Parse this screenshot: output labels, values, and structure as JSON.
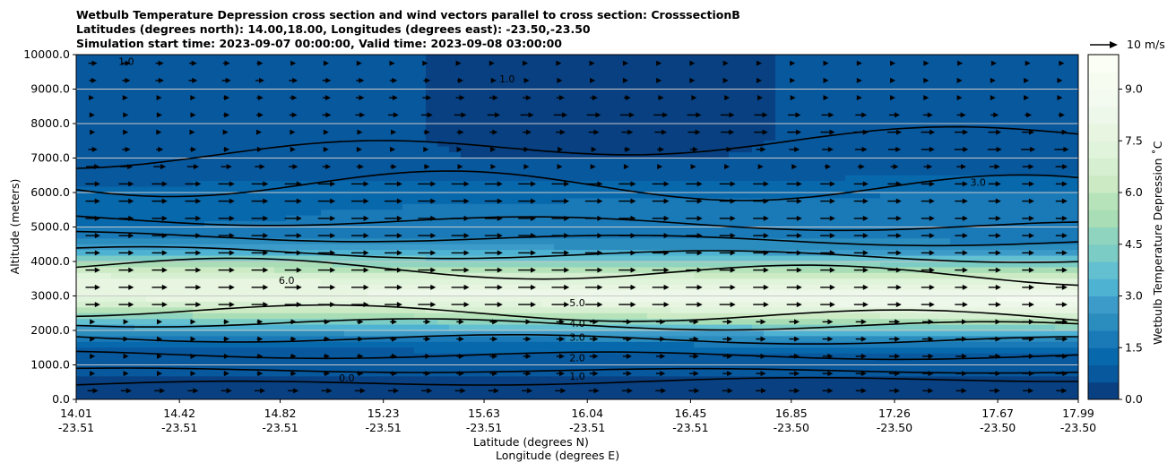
{
  "title_lines": [
    "Wetbulb Temperature Depression cross section and wind vectors parallel to cross section: CrosssectionB",
    "Latitudes (degrees north): 14.00,18.00, Longitudes (degrees east): -23.50,-23.50",
    "Simulation start time: 2023-09-07 00:00:00, Valid time: 2023-09-08 03:00:00"
  ],
  "chart_data": {
    "type": "contour_cross_section",
    "variable": "Wetbulb Temperature Depression",
    "x_axis": {
      "label_lat": "Latitude (degrees N)",
      "label_lon": "Longitude (degrees E)",
      "ticks": [
        {
          "lat": "14.01",
          "lon": "-23.51"
        },
        {
          "lat": "14.42",
          "lon": "-23.51"
        },
        {
          "lat": "14.82",
          "lon": "-23.51"
        },
        {
          "lat": "15.23",
          "lon": "-23.51"
        },
        {
          "lat": "15.63",
          "lon": "-23.51"
        },
        {
          "lat": "16.04",
          "lon": "-23.51"
        },
        {
          "lat": "16.45",
          "lon": "-23.51"
        },
        {
          "lat": "16.85",
          "lon": "-23.50"
        },
        {
          "lat": "17.26",
          "lon": "-23.50"
        },
        {
          "lat": "17.67",
          "lon": "-23.50"
        },
        {
          "lat": "17.99",
          "lon": "-23.50"
        }
      ],
      "range": [
        14.01,
        17.99
      ]
    },
    "y_axis": {
      "label": "Altitude (meters)",
      "ticks": [
        "0.0",
        "1000.0",
        "2000.0",
        "3000.0",
        "4000.0",
        "5000.0",
        "6000.0",
        "7000.0",
        "8000.0",
        "9000.0",
        "10000.0"
      ],
      "range": [
        0,
        10000
      ],
      "grid": true
    },
    "colorbar": {
      "label": "Wetbulb Temperature Depression ˚C",
      "ticks": [
        "0.0",
        "1.5",
        "3.0",
        "4.5",
        "6.0",
        "7.5",
        "9.0"
      ],
      "range": [
        0,
        10
      ],
      "levels": 20,
      "colors": [
        "#084081",
        "#08589e",
        "#0868ac",
        "#1a7ab8",
        "#2b8cbe",
        "#3c9bc9",
        "#4eb3d3",
        "#63c0d0",
        "#7bccc4",
        "#8fd4be",
        "#a8ddb5",
        "#b6e3b9",
        "#ccebc5",
        "#d6efd0",
        "#e0f3db",
        "#e7f5e1",
        "#eef8ea",
        "#f3faef",
        "#f7fcf0",
        "#fbfef5"
      ]
    },
    "contour_labels": [
      "0.0",
      "1.0",
      "2.0",
      "3.0",
      "4.0",
      "5.0",
      "6.0",
      "1.0",
      "1.0",
      "3.0"
    ],
    "wind_reference": "10 m/s"
  }
}
